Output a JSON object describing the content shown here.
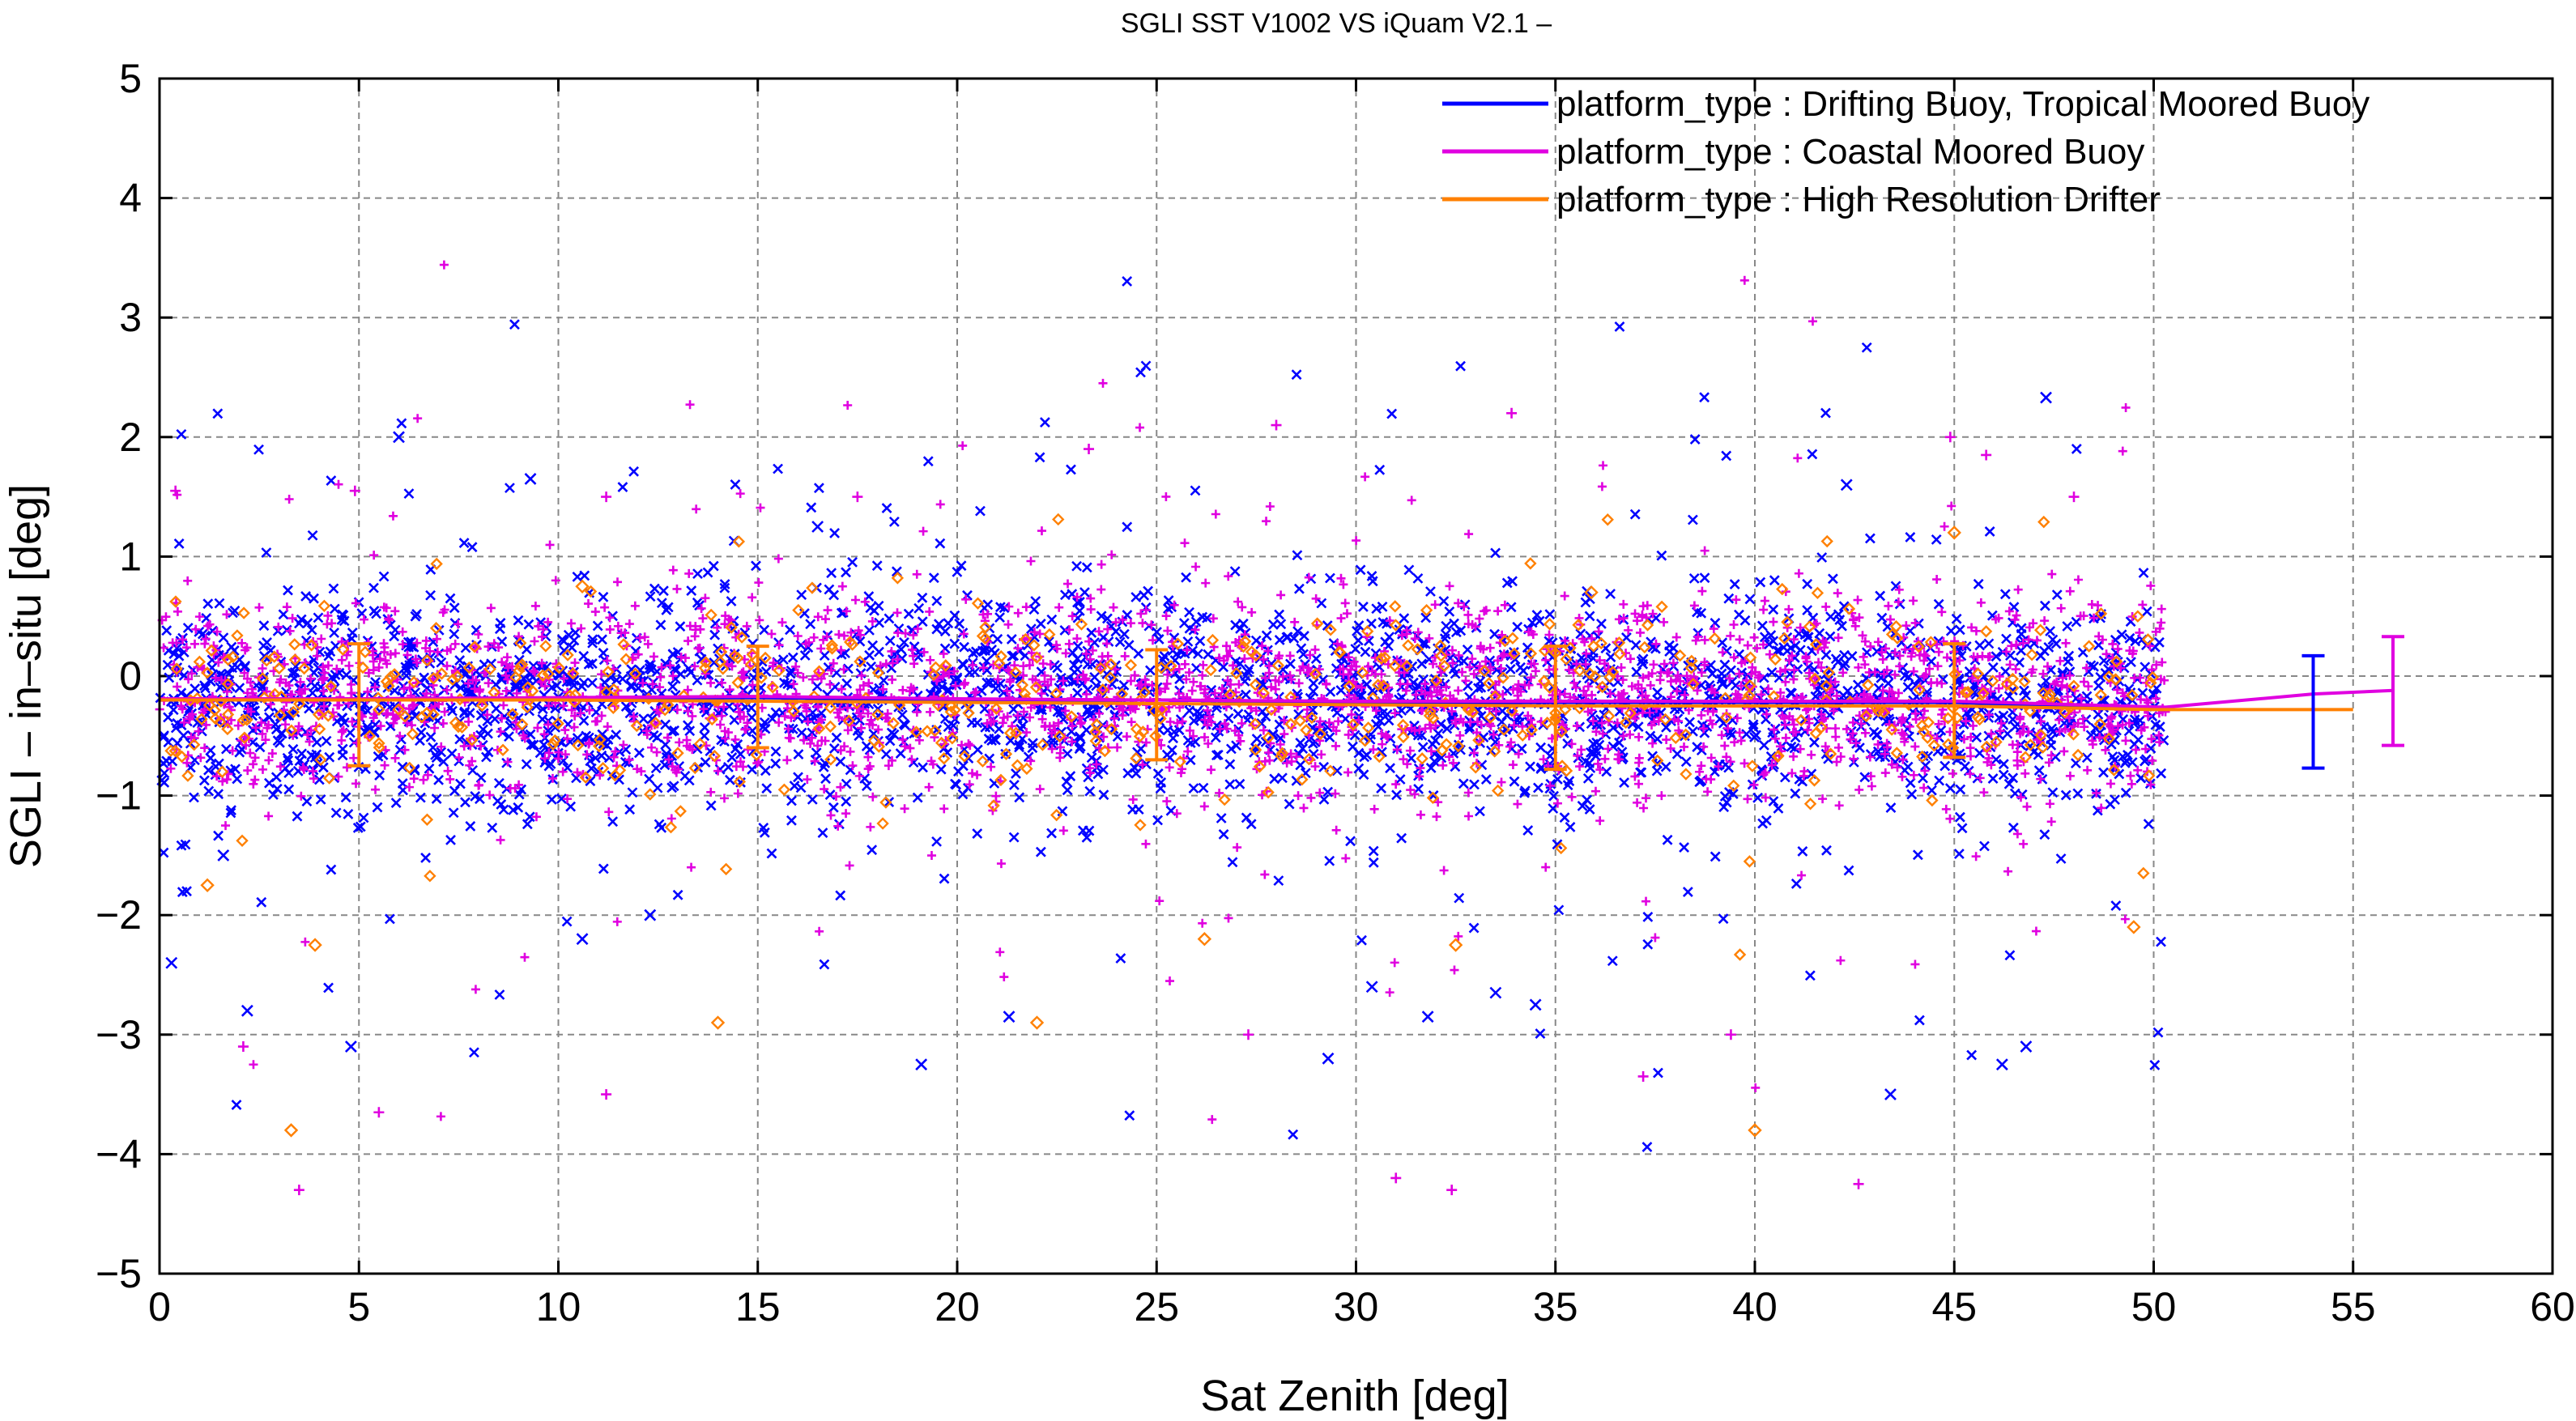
{
  "chart_data": {
    "type": "scatter",
    "title": "SGLI SST V1002 VS iQuam V2.1  –",
    "xlabel": "Sat Zenith [deg]",
    "ylabel": "SGLI – in–situ [deg]",
    "xlim": [
      0,
      60
    ],
    "ylim": [
      -5,
      5
    ],
    "xticks": [
      "0",
      "5",
      "10",
      "15",
      "20",
      "25",
      "30",
      "35",
      "40",
      "45",
      "50",
      "55",
      "60"
    ],
    "yticks": [
      "−5",
      "−4",
      "−3",
      "−2",
      "−1",
      "0",
      "1",
      "2",
      "3",
      "4",
      "5"
    ],
    "grid": true,
    "legend_position": "top-right",
    "series": [
      {
        "name": "platform_type : Drifting Buoy, Tropical Moored Buoy",
        "color": "#0000ff",
        "marker": "x",
        "points_x_range": [
          0,
          50.3
        ],
        "typical_spread": [
          -1.0,
          0.6
        ],
        "mean_line": {
          "x": [
            0,
            5,
            10,
            15,
            20,
            25,
            30,
            35,
            40,
            45,
            50.3
          ],
          "y": [
            -0.2,
            -0.2,
            -0.19,
            -0.18,
            -0.2,
            -0.2,
            -0.22,
            -0.22,
            -0.22,
            -0.22,
            -0.28
          ]
        },
        "error_bars": [
          {
            "x": 54,
            "mean": -0.3,
            "low": -0.77,
            "high": 0.17
          }
        ],
        "outliers": [
          {
            "x": 0.3,
            "y": -2.4
          },
          {
            "x": 1.6,
            "y": -1.5
          },
          {
            "x": 2.2,
            "y": -2.8
          },
          {
            "x": 4.8,
            "y": -3.1
          },
          {
            "x": 6.0,
            "y": 2.0
          },
          {
            "x": 9.3,
            "y": 1.65
          },
          {
            "x": 10.6,
            "y": -2.2
          },
          {
            "x": 12.3,
            "y": -2.0
          },
          {
            "x": 16.5,
            "y": 1.25
          },
          {
            "x": 19.1,
            "y": -3.25
          },
          {
            "x": 21.3,
            "y": -2.85
          },
          {
            "x": 29.3,
            "y": -3.2
          },
          {
            "x": 30.4,
            "y": -2.6
          },
          {
            "x": 31.8,
            "y": -2.85
          },
          {
            "x": 33.5,
            "y": -2.65
          },
          {
            "x": 34.5,
            "y": -2.75
          },
          {
            "x": 42.3,
            "y": 1.6
          },
          {
            "x": 43.4,
            "y": -3.5
          },
          {
            "x": 46.2,
            "y": -3.25
          },
          {
            "x": 47.3,
            "y": 2.33
          },
          {
            "x": 46.8,
            "y": -3.1
          }
        ]
      },
      {
        "name": "platform_type : Coastal Moored Buoy",
        "color": "#e000e0",
        "marker": "+",
        "points_x_range": [
          0,
          50.3
        ],
        "typical_spread": [
          -0.9,
          0.55
        ],
        "mean_line": {
          "x": [
            0,
            5,
            10,
            15,
            20,
            25,
            30,
            35,
            40,
            45,
            50.3,
            54,
            56
          ],
          "y": [
            -0.19,
            -0.19,
            -0.18,
            -0.17,
            -0.19,
            -0.2,
            -0.21,
            -0.21,
            -0.21,
            -0.21,
            -0.26,
            -0.15,
            -0.12
          ]
        },
        "error_bars": [
          {
            "x": 56,
            "mean": -0.12,
            "low": -0.58,
            "high": 0.33
          }
        ],
        "outliers": [
          {
            "x": 0.4,
            "y": 1.55
          },
          {
            "x": 2.1,
            "y": -3.1
          },
          {
            "x": 3.5,
            "y": -4.3
          },
          {
            "x": 5.5,
            "y": -3.65
          },
          {
            "x": 11.2,
            "y": -3.5
          },
          {
            "x": 11.2,
            "y": 1.5
          },
          {
            "x": 17.5,
            "y": 1.5
          },
          {
            "x": 23.3,
            "y": 1.9
          },
          {
            "x": 28.0,
            "y": 2.1
          },
          {
            "x": 27.3,
            "y": -3.0
          },
          {
            "x": 31.0,
            "y": -4.2
          },
          {
            "x": 32.4,
            "y": -4.3
          },
          {
            "x": 33.9,
            "y": 2.2
          },
          {
            "x": 37.2,
            "y": -3.35
          },
          {
            "x": 39.4,
            "y": -3.0
          },
          {
            "x": 42.6,
            "y": -4.25
          },
          {
            "x": 44.9,
            "y": 2.0
          },
          {
            "x": 45.8,
            "y": 1.85
          },
          {
            "x": 48.0,
            "y": 1.5
          },
          {
            "x": 4.9,
            "y": 1.55
          }
        ]
      },
      {
        "name": "platform_type : High Resolution Drifter",
        "color": "#ff8000",
        "marker": "diamond",
        "points_x_range": [
          0,
          50
        ],
        "typical_spread": [
          -0.85,
          0.5
        ],
        "mean_line": {
          "x": [
            0,
            5,
            10,
            15,
            20,
            25,
            30,
            35,
            40,
            45,
            50,
            55
          ],
          "y": [
            -0.2,
            -0.2,
            -0.2,
            -0.21,
            -0.22,
            -0.23,
            -0.24,
            -0.25,
            -0.25,
            -0.25,
            -0.28,
            -0.28
          ]
        },
        "error_bars": [
          {
            "x": 5,
            "mean": -0.2,
            "low": -0.75,
            "high": 0.27
          },
          {
            "x": 15,
            "mean": -0.21,
            "low": -0.6,
            "high": 0.25
          },
          {
            "x": 25,
            "mean": -0.23,
            "low": -0.7,
            "high": 0.22
          },
          {
            "x": 35,
            "mean": -0.25,
            "low": -0.78,
            "high": 0.25
          },
          {
            "x": 45,
            "mean": -0.25,
            "low": -0.68,
            "high": 0.27
          }
        ],
        "outliers": [
          {
            "x": 3.3,
            "y": -3.8
          },
          {
            "x": 14.0,
            "y": -2.9
          },
          {
            "x": 22.0,
            "y": -2.9
          },
          {
            "x": 26.2,
            "y": -2.2
          },
          {
            "x": 40.0,
            "y": -3.8
          },
          {
            "x": 3.9,
            "y": -2.25
          },
          {
            "x": 10.6,
            "y": 0.75
          },
          {
            "x": 45.0,
            "y": 1.2
          },
          {
            "x": 49.5,
            "y": -2.1
          },
          {
            "x": 35.9,
            "y": 0.7
          },
          {
            "x": 1.2,
            "y": -1.75
          },
          {
            "x": 32.5,
            "y": -2.25
          }
        ]
      }
    ]
  }
}
